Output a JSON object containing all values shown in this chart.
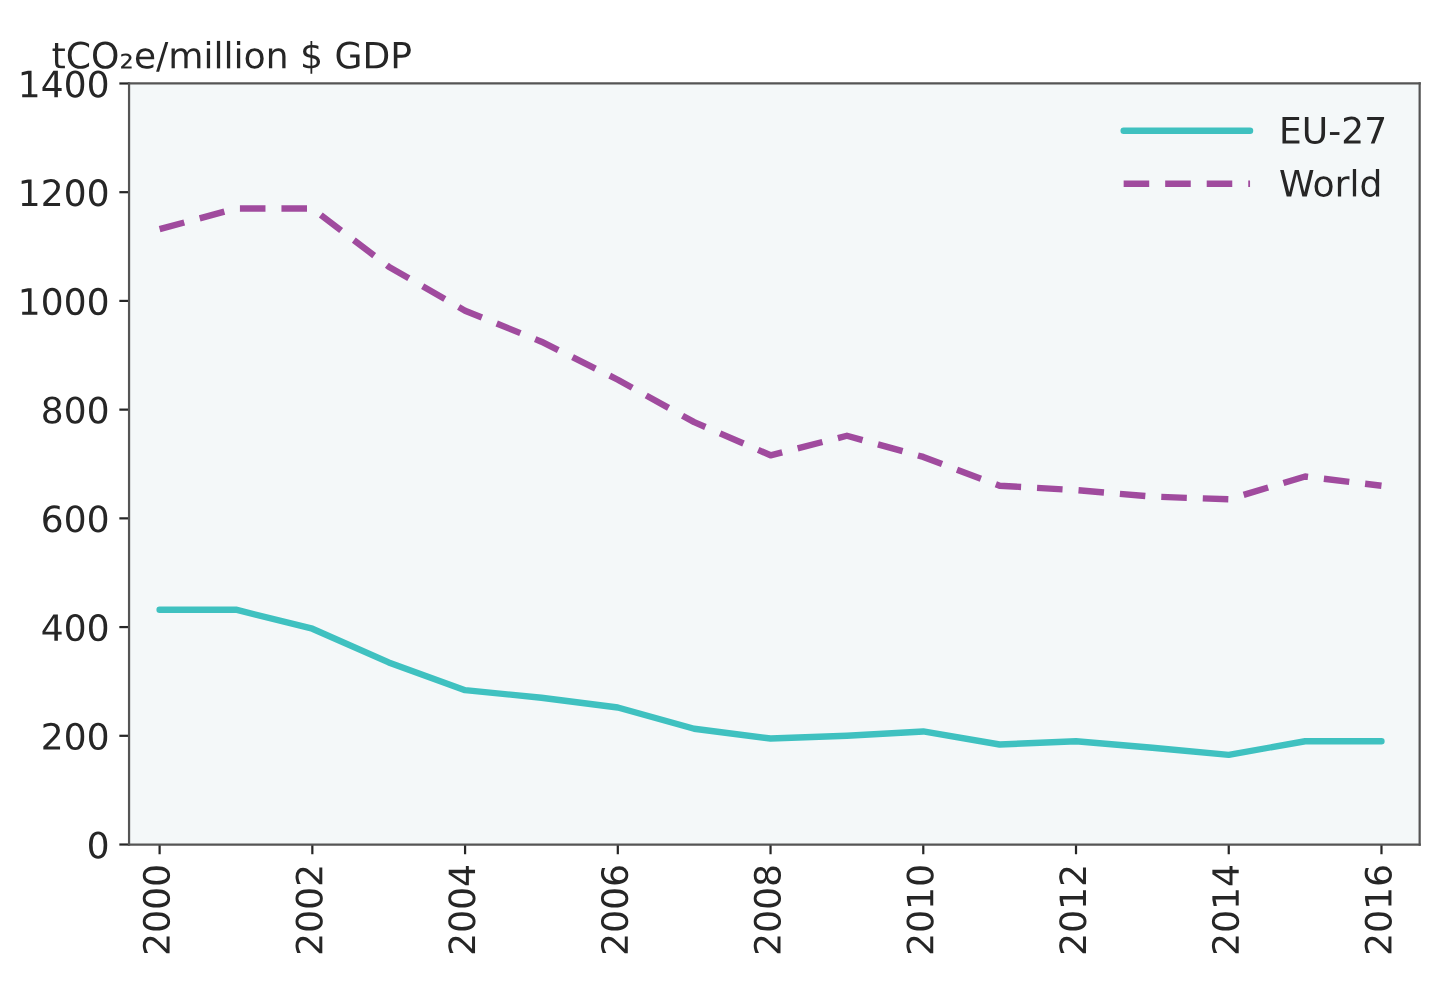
{
  "chart_data": {
    "type": "line",
    "ylabel": "tCO₂e/million $ GDP",
    "x": [
      2000,
      2001,
      2002,
      2003,
      2004,
      2005,
      2006,
      2007,
      2008,
      2009,
      2010,
      2011,
      2012,
      2013,
      2014,
      2015,
      2016
    ],
    "series": [
      {
        "name": "EU-27",
        "color": "#3fc1c0",
        "line_style": "solid",
        "values": [
          432,
          432,
          397,
          335,
          284,
          270,
          252,
          213,
          195,
          200,
          208,
          184,
          190,
          178,
          165,
          190,
          190
        ]
      },
      {
        "name": "World",
        "color": "#a04b9e",
        "line_style": "dashed",
        "values": [
          1132,
          1170,
          1170,
          1063,
          982,
          925,
          855,
          777,
          716,
          752,
          713,
          660,
          652,
          640,
          635,
          677,
          660
        ]
      }
    ],
    "xlim": [
      1999.6,
      2016.5
    ],
    "xticks": [
      2000,
      2002,
      2004,
      2006,
      2008,
      2010,
      2012,
      2014,
      2016
    ],
    "ylim": [
      0,
      1400
    ],
    "yticks": [
      0,
      200,
      400,
      600,
      800,
      1000,
      1200,
      1400
    ],
    "grid": false,
    "legend": "top right",
    "marker": "none"
  }
}
